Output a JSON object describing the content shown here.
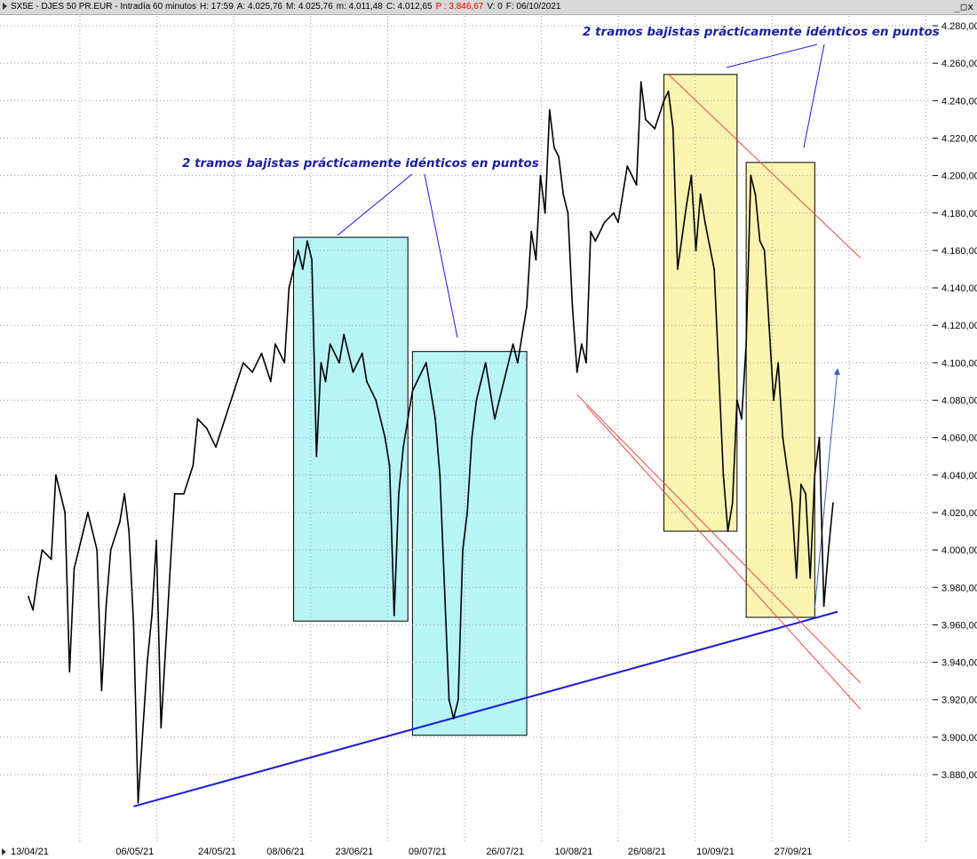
{
  "header": {
    "symbol": "SX5E - DJES 50 PR.EUR - Intradía 60 minutos",
    "high": "H: 17:59",
    "open": "A: 4.025,76",
    "max": "M: 4.025,76",
    "min": "m: 4.011,48",
    "close": "C: 4.012,65",
    "price": "P : 3.846,67",
    "volume": "V: 0",
    "date": "F: 06/10/2021",
    "controls": [
      "_",
      "□",
      "x"
    ]
  },
  "colors": {
    "price_line": "#000000",
    "blue_box": "#b7f4f6",
    "yellow_box": "#f9f4b0",
    "support_line": "#1a1ad8",
    "red_channel": "#e84a4a",
    "annotation_text": "#1b1f9c",
    "arrow": "#3a5fa8"
  },
  "chart_data": {
    "type": "line",
    "title": "",
    "xlabel": "",
    "ylabel": "",
    "ylim": [
      3860,
      4285
    ],
    "y_ticks": [
      3880,
      3900,
      3920,
      3940,
      3960,
      3980,
      4000,
      4020,
      4040,
      4060,
      4080,
      4100,
      4120,
      4140,
      4160,
      4180,
      4200,
      4220,
      4240,
      4260,
      4280
    ],
    "y_tick_labels": [
      "3.880,00",
      "3.900,00",
      "3.920,00",
      "3.940,00",
      "3.960,00",
      "3.980,00",
      "4.000,00",
      "4.020,00",
      "4.040,00",
      "4.060,00",
      "4.080,00",
      "4.100,00",
      "4.120,00",
      "4.140,00",
      "4.160,00",
      "4.180,00",
      "4.200,00",
      "4.220,00",
      "4.240,00",
      "4.260,00",
      "4.280,00"
    ],
    "x_range": [
      "2021-04-13",
      "2021-10-20"
    ],
    "x_ticks": [
      "2021-04-13",
      "2021-05-06",
      "2021-05-24",
      "2021-06-08",
      "2021-06-23",
      "2021-07-09",
      "2021-07-26",
      "2021-08-10",
      "2021-08-26",
      "2021-09-10",
      "2021-09-27"
    ],
    "x_tick_labels": [
      "13/04/21",
      "06/05/21",
      "24/05/21",
      "08/06/21",
      "23/06/21",
      "09/07/21",
      "26/07/21",
      "10/08/21",
      "26/08/21",
      "10/09/21",
      "27/09/21"
    ],
    "grid": true,
    "series": [
      {
        "x": [
          "2021-04-13",
          "2021-04-14",
          "2021-04-15",
          "2021-04-16",
          "2021-04-18",
          "2021-04-19",
          "2021-04-21",
          "2021-04-22",
          "2021-04-23",
          "2021-04-25",
          "2021-04-26",
          "2021-04-28",
          "2021-04-29",
          "2021-04-30",
          "2021-05-01",
          "2021-05-03",
          "2021-05-04",
          "2021-05-05",
          "2021-05-06",
          "2021-05-07",
          "2021-05-09",
          "2021-05-10",
          "2021-05-11",
          "2021-05-12",
          "2021-05-14",
          "2021-05-15",
          "2021-05-17",
          "2021-05-19",
          "2021-05-20",
          "2021-05-22",
          "2021-05-24",
          "2021-05-26",
          "2021-05-28",
          "2021-05-30",
          "2021-06-01",
          "2021-06-03",
          "2021-06-05",
          "2021-06-06",
          "2021-06-08",
          "2021-06-09",
          "2021-06-11",
          "2021-06-12",
          "2021-06-13",
          "2021-06-14",
          "2021-06-15",
          "2021-06-16",
          "2021-06-17",
          "2021-06-18",
          "2021-06-20",
          "2021-06-21",
          "2021-06-23",
          "2021-06-25",
          "2021-06-26",
          "2021-06-28",
          "2021-06-30",
          "2021-07-01",
          "2021-07-02",
          "2021-07-03",
          "2021-07-04",
          "2021-07-06",
          "2021-07-08",
          "2021-07-09",
          "2021-07-11",
          "2021-07-12",
          "2021-07-14",
          "2021-07-15",
          "2021-07-16",
          "2021-07-17",
          "2021-07-18",
          "2021-07-19",
          "2021-07-20",
          "2021-07-22",
          "2021-07-24",
          "2021-07-26",
          "2021-07-28",
          "2021-07-29",
          "2021-07-31",
          "2021-08-01",
          "2021-08-02",
          "2021-08-03",
          "2021-08-04",
          "2021-08-05",
          "2021-08-06",
          "2021-08-07",
          "2021-08-08",
          "2021-08-09",
          "2021-08-10",
          "2021-08-11",
          "2021-08-12",
          "2021-08-13",
          "2021-08-14",
          "2021-08-15",
          "2021-08-17",
          "2021-08-19",
          "2021-08-20",
          "2021-08-22",
          "2021-08-24",
          "2021-08-25",
          "2021-08-26",
          "2021-08-28",
          "2021-08-30",
          "2021-08-31",
          "2021-09-01",
          "2021-09-02",
          "2021-09-04",
          "2021-09-05",
          "2021-09-06",
          "2021-09-07",
          "2021-09-08",
          "2021-09-10",
          "2021-09-11",
          "2021-09-12",
          "2021-09-13",
          "2021-09-14",
          "2021-09-15",
          "2021-09-16",
          "2021-09-17",
          "2021-09-18",
          "2021-09-19",
          "2021-09-20",
          "2021-09-21",
          "2021-09-22",
          "2021-09-23",
          "2021-09-24",
          "2021-09-25",
          "2021-09-27",
          "2021-09-28",
          "2021-09-29",
          "2021-09-30",
          "2021-10-01",
          "2021-10-02",
          "2021-10-03",
          "2021-10-04",
          "2021-10-05",
          "2021-10-06"
        ],
        "values": [
          3975,
          3968,
          3985,
          4000,
          3995,
          4040,
          4020,
          3935,
          3990,
          4010,
          4020,
          4000,
          3925,
          3970,
          4000,
          4015,
          4030,
          4010,
          3960,
          3865,
          3940,
          3965,
          4005,
          3905,
          3990,
          4030,
          4030,
          4045,
          4070,
          4065,
          4055,
          4070,
          4085,
          4100,
          4095,
          4105,
          4090,
          4110,
          4100,
          4140,
          4160,
          4150,
          4165,
          4155,
          4050,
          4100,
          4090,
          4110,
          4100,
          4115,
          4095,
          4105,
          4090,
          4080,
          4060,
          4045,
          3965,
          4030,
          4055,
          4085,
          4095,
          4100,
          4070,
          4040,
          3920,
          3910,
          3920,
          4000,
          4020,
          4060,
          4080,
          4100,
          4070,
          4090,
          4110,
          4100,
          4130,
          4170,
          4155,
          4200,
          4180,
          4235,
          4215,
          4210,
          4190,
          4180,
          4130,
          4095,
          4110,
          4100,
          4170,
          4165,
          4175,
          4180,
          4175,
          4205,
          4195,
          4250,
          4230,
          4225,
          4240,
          4245,
          4225,
          4150,
          4185,
          4200,
          4160,
          4190,
          4175,
          4150,
          4095,
          4040,
          4010,
          4025,
          4080,
          4070,
          4110,
          4200,
          4190,
          4165,
          4160,
          4120,
          4080,
          4100,
          4060,
          4025,
          3985,
          4035,
          4030,
          3985,
          4040,
          4060,
          3970,
          4000,
          4025
        ]
      }
    ],
    "annotations": [
      "2 tramos bajistas prácticamente idénticos en puntos",
      "2 tramos bajistas prácticamente idénticos en puntos"
    ],
    "overlays": {
      "blue_boxes": [
        {
          "x": [
            "2021-06-10",
            "2021-07-05"
          ],
          "y": [
            3962,
            4167
          ]
        },
        {
          "x": [
            "2021-07-06",
            "2021-07-31"
          ],
          "y": [
            3901,
            4106
          ]
        }
      ],
      "yellow_boxes": [
        {
          "x": [
            "2021-08-30",
            "2021-09-15"
          ],
          "y": [
            4010,
            4254
          ]
        },
        {
          "x": [
            "2021-09-17",
            "2021-10-02"
          ],
          "y": [
            3964,
            4207
          ]
        }
      ],
      "support_line": {
        "x": [
          "2021-05-06",
          "2021-10-07"
        ],
        "y": [
          3863,
          3967
        ]
      },
      "red_lines": [
        {
          "x": [
            "2021-08-31",
            "2021-10-12"
          ],
          "y": [
            4254,
            4156
          ]
        },
        {
          "x": [
            "2021-08-11",
            "2021-10-12"
          ],
          "y": [
            4083,
            3929
          ]
        },
        {
          "x": [
            "2021-08-13",
            "2021-10-12"
          ],
          "y": [
            4077,
            3915
          ]
        }
      ],
      "projection_arrow": {
        "x": [
          "2021-10-02",
          "2021-10-07"
        ],
        "y": [
          3969,
          4097
        ]
      }
    }
  }
}
